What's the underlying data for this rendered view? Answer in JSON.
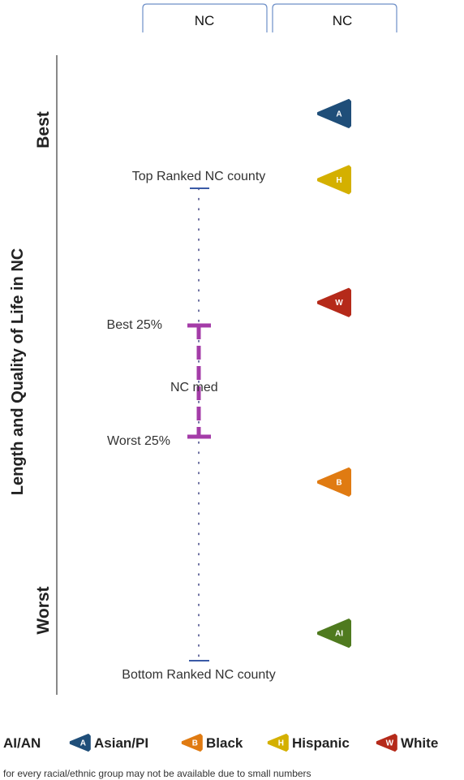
{
  "header": {
    "tabs": [
      {
        "label": "NC"
      },
      {
        "label": "NC"
      }
    ]
  },
  "chart_data": {
    "type": "scatter",
    "ylabel": "Length and Quality of Life in NC",
    "scale_top_label": "Best",
    "scale_bottom_label": "Worst",
    "county_range": {
      "top_label": "Top Ranked NC county",
      "bottom_label": "Bottom Ranked NC county",
      "best25_label": "Best 25%",
      "worst25_label": "Worst 25%",
      "median_label": "NC med"
    },
    "groups": [
      {
        "code": "A",
        "name": "Asian/PI",
        "color": "#1f4e79",
        "rank_position": 0.06
      },
      {
        "code": "H",
        "name": "Hispanic",
        "color": "#d4b000",
        "rank_position": 0.2
      },
      {
        "code": "W",
        "name": "White",
        "color": "#b52a1a",
        "rank_position": 0.46
      },
      {
        "code": "B",
        "name": "Black",
        "color": "#e07b12",
        "rank_position": 0.84
      },
      {
        "code": "AI",
        "name": "AI/AN",
        "color": "#4f7a1f",
        "rank_position": 1.16
      }
    ],
    "legend": [
      {
        "name": "AI/AN",
        "code": "AI",
        "color": "#4f7a1f"
      },
      {
        "name": "Asian/PI",
        "code": "A",
        "color": "#1f4e79"
      },
      {
        "name": "Black",
        "code": "B",
        "color": "#e07b12"
      },
      {
        "name": "Hispanic",
        "code": "H",
        "color": "#d4b000"
      },
      {
        "name": "White",
        "code": "W",
        "color": "#b52a1a"
      }
    ],
    "footnote": "n for every racial/ethnic group may not be available due to small numbers",
    "colors": {
      "iqr": "#a43ca8",
      "range_line": "#4a4f8a",
      "axis": "#888888"
    }
  }
}
